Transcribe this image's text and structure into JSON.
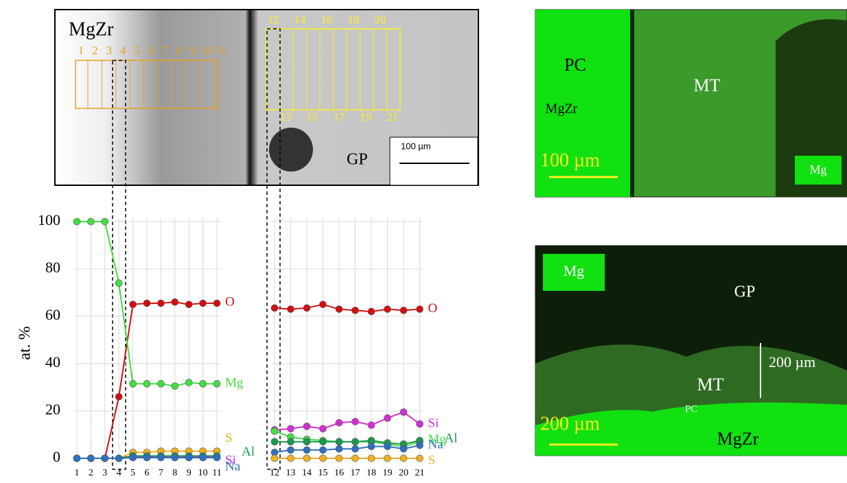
{
  "chart_data": [
    {
      "type": "line",
      "ylabel": "at. %",
      "categories": [
        "1",
        "2",
        "3",
        "4",
        "5",
        "6",
        "7",
        "8",
        "9",
        "10",
        "11"
      ],
      "ylim": [
        0,
        100
      ],
      "yticks": [
        0,
        20,
        40,
        60,
        80,
        100
      ],
      "grid": true,
      "series": [
        {
          "name": "O",
          "color": "#d01010",
          "values": [
            0,
            0,
            0,
            26,
            65,
            65.5,
            65.5,
            66,
            65,
            65.5,
            65.5
          ]
        },
        {
          "name": "Mg",
          "color": "#44dd44",
          "values": [
            100,
            100,
            100,
            74,
            31.5,
            31.5,
            31.5,
            30.5,
            32,
            31.5,
            31.5
          ]
        },
        {
          "name": "S",
          "color": "#f0b020",
          "values": [
            0,
            0,
            0,
            0,
            2.5,
            2.5,
            3,
            3,
            3,
            3,
            3
          ]
        },
        {
          "name": "Si",
          "color": "#d030d0",
          "values": [
            0,
            0,
            0,
            0,
            0.5,
            0.5,
            0.5,
            0.5,
            0.5,
            0.5,
            0.5
          ]
        },
        {
          "name": "Al",
          "color": "#1a9a50",
          "values": [
            0,
            0,
            0,
            0,
            1,
            1,
            1,
            1,
            1,
            1,
            1
          ]
        },
        {
          "name": "Na",
          "color": "#2e6fc0",
          "values": [
            0,
            0,
            0,
            0,
            0.3,
            0.3,
            0.3,
            0.3,
            0.3,
            0.3,
            0.3
          ]
        }
      ]
    },
    {
      "type": "line",
      "categories": [
        "12",
        "13",
        "14",
        "15",
        "16",
        "17",
        "18",
        "19",
        "20",
        "21"
      ],
      "ylim": [
        0,
        100
      ],
      "grid": true,
      "series": [
        {
          "name": "O",
          "color": "#d01010",
          "values": [
            63.5,
            63,
            63.5,
            65,
            63,
            62.5,
            62,
            63,
            62.5,
            63
          ]
        },
        {
          "name": "Si",
          "color": "#d030d0",
          "values": [
            12,
            12.5,
            13.5,
            12.5,
            15,
            15.5,
            14,
            17,
            19.5,
            14.5
          ]
        },
        {
          "name": "Mg",
          "color": "#44dd44",
          "values": [
            11.5,
            9,
            8,
            7.5,
            7,
            7,
            7,
            6,
            5,
            7
          ]
        },
        {
          "name": "Al",
          "color": "#1a9a50",
          "values": [
            7,
            7,
            7,
            7,
            7,
            7,
            7.5,
            6.5,
            6,
            7.5
          ]
        },
        {
          "name": "Na",
          "color": "#2e6fc0",
          "values": [
            2.5,
            3.5,
            3.5,
            3.5,
            4,
            4,
            5,
            5,
            4,
            5.5
          ]
        },
        {
          "name": "S",
          "color": "#f0b020",
          "values": [
            0,
            0,
            0,
            0,
            0,
            0,
            0,
            0,
            0,
            0
          ]
        }
      ]
    }
  ],
  "sem": {
    "title": "MgZr",
    "points": [
      "1",
      "2",
      "3",
      "4",
      "5",
      "6",
      "7",
      "8",
      "9",
      "10",
      "11",
      "12",
      "13",
      "14",
      "15",
      "16",
      "17",
      "18",
      "19",
      "20",
      "21"
    ],
    "region": "GP",
    "scale": "100 µm"
  },
  "map_top": {
    "labels": [
      "PC",
      "MT",
      "MgZr"
    ],
    "scale": "100 µm",
    "element": "Mg"
  },
  "map_bottom": {
    "element": "Mg",
    "labels": [
      "GP",
      "MT",
      "PC",
      "MgZr"
    ],
    "bar": "200 µm",
    "scale": "200 µm"
  }
}
